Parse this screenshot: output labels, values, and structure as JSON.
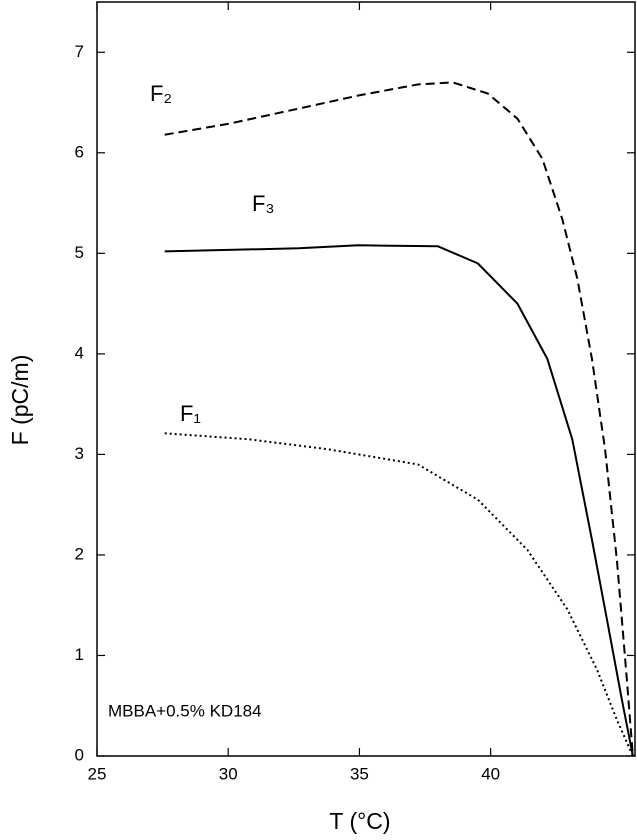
{
  "chart_data": {
    "type": "line",
    "xlabel": "T  (°C)",
    "ylabel": "F  (pC/m)",
    "annotation": "MBBA+0.5% KD184",
    "xlim": [
      25,
      45.5
    ],
    "ylim": [
      0,
      7.5
    ],
    "xticks": [
      25,
      30,
      35,
      40
    ],
    "yticks": [
      0,
      1,
      2,
      3,
      4,
      5,
      6,
      7
    ],
    "series": [
      {
        "name": "F₂",
        "color": "#000000",
        "style": "dashed",
        "x": [
          27.58,
          30.04,
          32.69,
          34.96,
          37.23,
          38.56,
          39.89,
          41.02,
          41.97,
          42.73,
          43.3,
          43.86,
          44.36,
          44.81,
          45.19,
          45.42
        ],
        "values": [
          6.18,
          6.29,
          6.44,
          6.57,
          6.68,
          6.7,
          6.59,
          6.34,
          5.94,
          5.34,
          4.75,
          3.95,
          3.05,
          1.95,
          0.76,
          0
        ]
      },
      {
        "name": "F₃",
        "color": "#000000",
        "style": "solid",
        "x": [
          27.58,
          32.69,
          34.96,
          37.99,
          39.51,
          41.02,
          42.16,
          43.11,
          43.86,
          44.43,
          45.0,
          45.42
        ],
        "values": [
          5.02,
          5.05,
          5.08,
          5.07,
          4.9,
          4.5,
          3.95,
          3.15,
          2.15,
          1.36,
          0.56,
          0
        ]
      },
      {
        "name": "F₁",
        "color": "#000000",
        "style": "dotted",
        "x": [
          27.58,
          30.8,
          33.83,
          37.23,
          39.51,
          41.4,
          42.92,
          44.05,
          44.81,
          45.42
        ],
        "values": [
          3.21,
          3.15,
          3.05,
          2.9,
          2.55,
          2.05,
          1.46,
          0.86,
          0.36,
          0
        ]
      }
    ]
  }
}
